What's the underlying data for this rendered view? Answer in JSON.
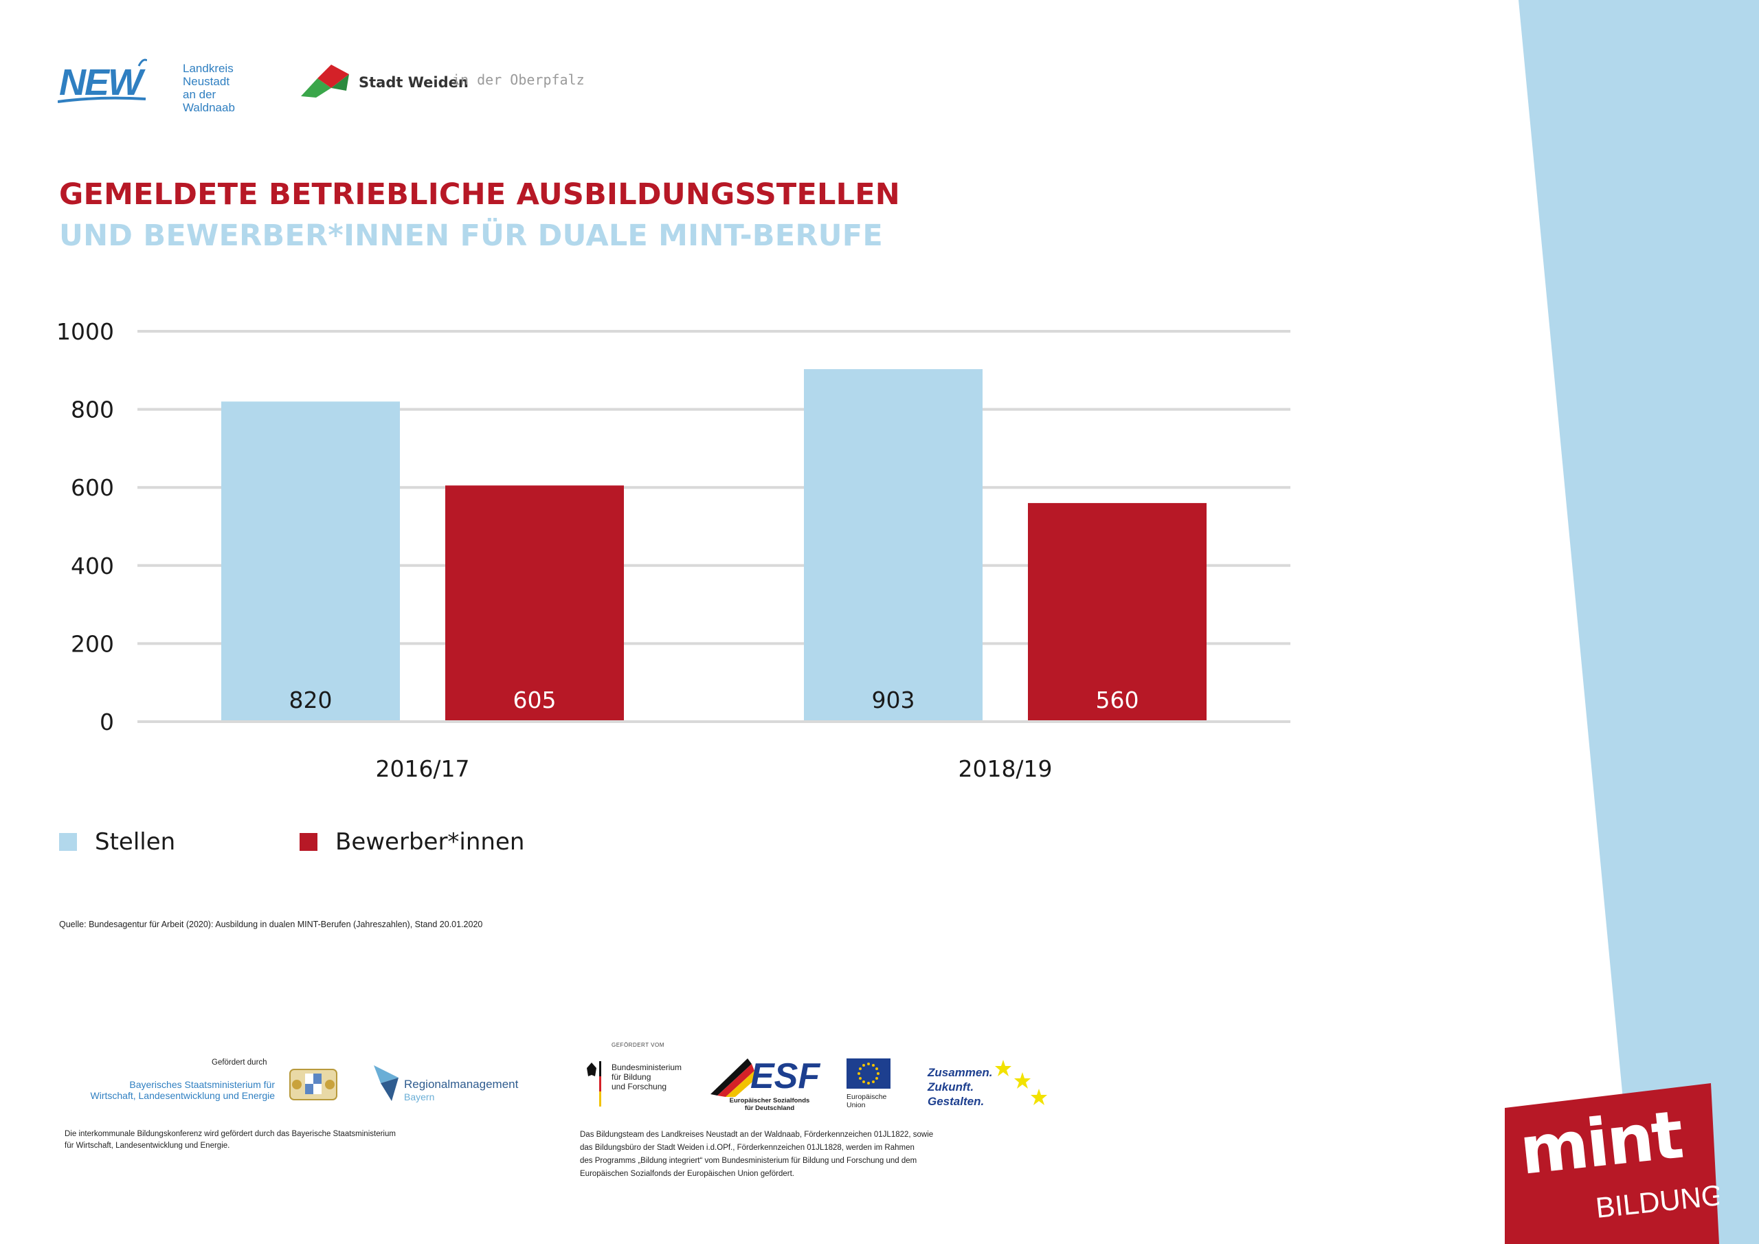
{
  "colors": {
    "stellen": "#b2d8ec",
    "bewerber": "#b71826",
    "title_red": "#b71826",
    "title_blue": "#b2d8ec",
    "grid": "#d9d9d9",
    "stripe": "#b2d8ec"
  },
  "header": {
    "logo_new": {
      "mark": "NEW",
      "text": "Landkreis\nNeustadt\nan der Waldnaab"
    },
    "logo_weiden": {
      "name": "Stadt Weiden",
      "suffix": "in der Oberpfalz"
    }
  },
  "title": {
    "line1": "GEMELDETE BETRIEBLICHE AUSBILDUNGSSTELLEN",
    "line2": "UND BEWERBER*INNEN FÜR DUALE MINT-BERUFE"
  },
  "chart_data": {
    "type": "bar",
    "categories": [
      "2016/17",
      "2018/19"
    ],
    "series": [
      {
        "name": "Stellen",
        "values": [
          820,
          903
        ],
        "labels": [
          "820",
          "903"
        ]
      },
      {
        "name": "Bewerber*innen",
        "values": [
          605,
          560
        ],
        "labels": [
          "605",
          "560"
        ]
      }
    ],
    "yticks": [
      "0",
      "200",
      "400",
      "600",
      "800",
      "1000"
    ],
    "ylim": [
      0,
      1000
    ],
    "grid": true,
    "legend_position": "bottom-left"
  },
  "source": "Quelle: Bundesagentur für Arbeit (2020): Ausbildung in dualen MINT-Berufen (Jahreszahlen), Stand 20.01.2020",
  "footer": {
    "gefoerdert_durch": "Gefördert durch",
    "stmin": "Bayerisches Staatsministerium für\nWirtschaft, Landesentwicklung und Energie",
    "regm1": "Regionalmanagement",
    "regm2": "Bayern",
    "note_left": "Die interkommunale Bildungskonferenz wird gefördert durch das Bayerische Staatsministerium\nfür Wirtschaft, Landesentwicklung und Energie.",
    "gefoerdert_vom": "GEFÖRDERT VOM",
    "bmbf": "Bundesministerium\nfür Bildung\nund Forschung",
    "esf": "ESF",
    "esf_sub": "Europäischer Sozialfonds\nfür Deutschland",
    "eu": "Europäische\nUnion",
    "zusammen": "Zusammen.\nZukunft.\nGestalten.",
    "note_right": "Das Bildungsteam des Landkreises Neustadt an der Waldnaab, Förderkennzeichen 01JL1822, sowie\ndas Bildungsbüro der Stadt Weiden i.d.OPf., Förderkennzeichen 01JL1828, werden im Rahmen\ndes Programms „Bildung integriert“ vom Bundesministerium für Bildung und Forschung und dem\nEuropäischen Sozialfonds der Europäischen Union gefördert."
  },
  "mint_logo": {
    "word": "mint",
    "sub": "BILDUNG"
  }
}
